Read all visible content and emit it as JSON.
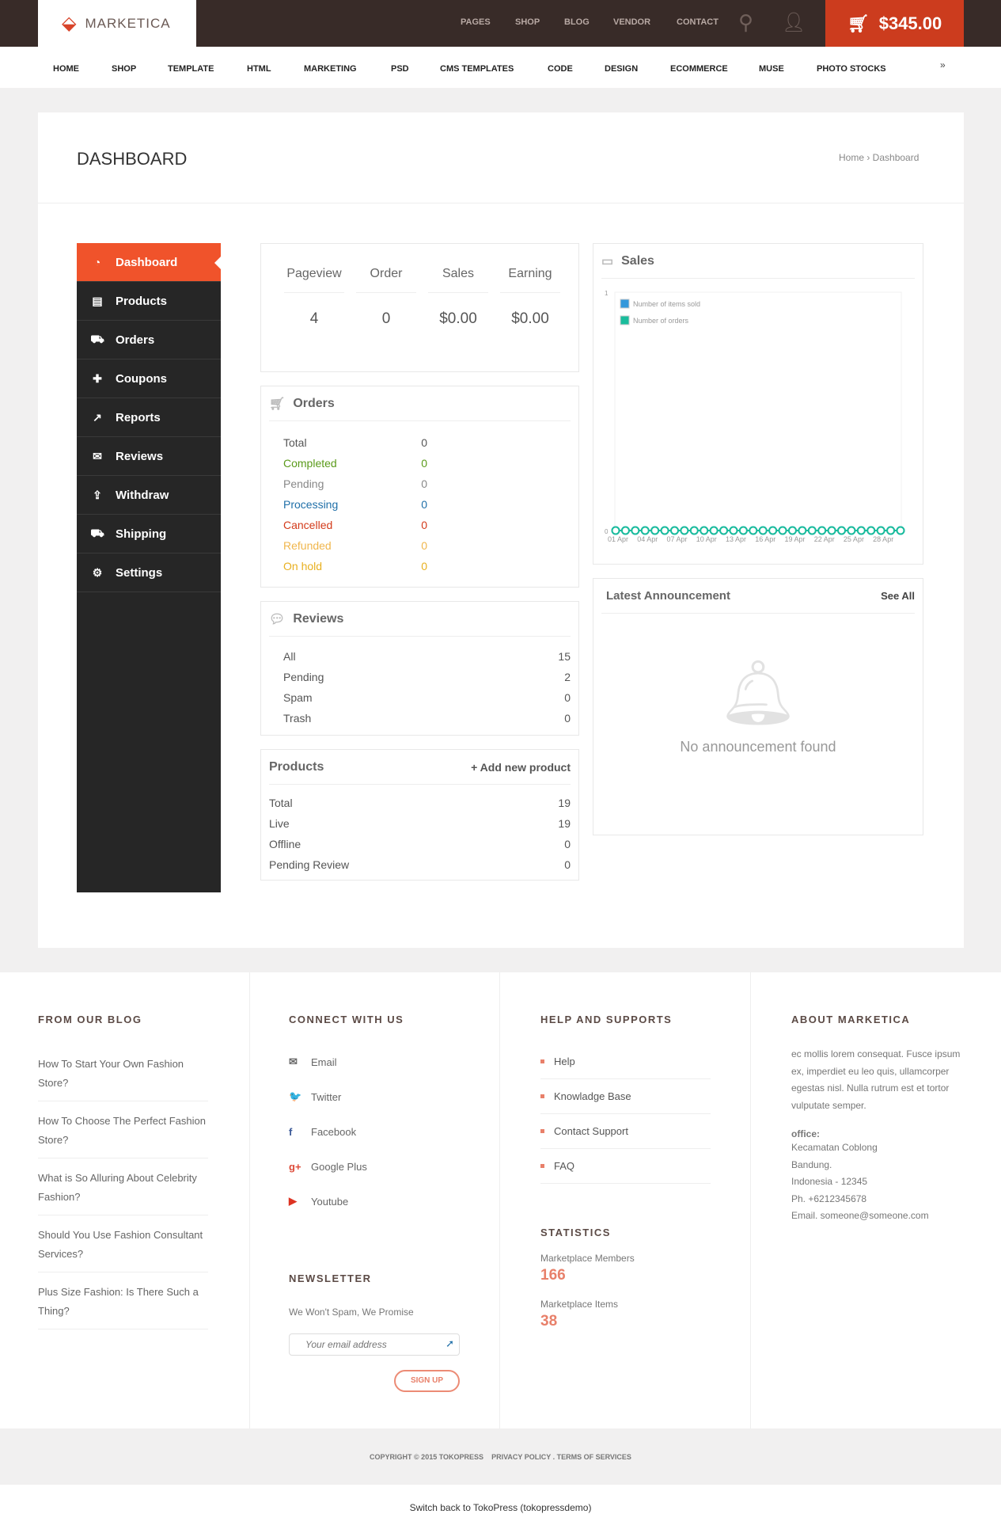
{
  "brand": {
    "name": "MARKETICA",
    "accent": "#f0532b"
  },
  "topnav": [
    "PAGES",
    "SHOP",
    "BLOG",
    "VENDOR",
    "CONTACT"
  ],
  "cart": {
    "total": "$345.00"
  },
  "menu": [
    "HOME",
    "SHOP",
    "TEMPLATE",
    "HTML",
    "MARKETING",
    "PSD",
    "CMS TEMPLATES",
    "CODE",
    "DESIGN",
    "ECOMMERCE",
    "MUSE",
    "PHOTO STOCKS"
  ],
  "page": {
    "title": "DASHBOARD",
    "breadcrumb": "Home › Dashboard"
  },
  "sidebar": [
    {
      "label": "Dashboard",
      "icon": "dashboard-icon",
      "glyph": "◔"
    },
    {
      "label": "Products",
      "icon": "briefcase-icon",
      "glyph": "▤"
    },
    {
      "label": "Orders",
      "icon": "cart-icon",
      "glyph": "⛟"
    },
    {
      "label": "Coupons",
      "icon": "gift-icon",
      "glyph": "✚"
    },
    {
      "label": "Reports",
      "icon": "chart-icon",
      "glyph": "↗"
    },
    {
      "label": "Reviews",
      "icon": "comments-icon",
      "glyph": "✉"
    },
    {
      "label": "Withdraw",
      "icon": "upload-icon",
      "glyph": "⇪"
    },
    {
      "label": "Shipping",
      "icon": "truck-icon",
      "glyph": "⛟"
    },
    {
      "label": "Settings",
      "icon": "gear-icon",
      "glyph": "⚙"
    }
  ],
  "stats": [
    {
      "label": "Pageview",
      "value": "4"
    },
    {
      "label": "Order",
      "value": "0"
    },
    {
      "label": "Sales",
      "value": "$0.00"
    },
    {
      "label": "Earning",
      "value": "$0.00"
    }
  ],
  "orders": {
    "title": "Orders",
    "rows": [
      {
        "label": "Total",
        "value": "0",
        "color": "#555555"
      },
      {
        "label": "Completed",
        "value": "0",
        "color": "#5a9a1a"
      },
      {
        "label": "Pending",
        "value": "0",
        "color": "#888888"
      },
      {
        "label": "Processing",
        "value": "0",
        "color": "#1f6fa8"
      },
      {
        "label": "Cancelled",
        "value": "0",
        "color": "#d33a1a"
      },
      {
        "label": "Refunded",
        "value": "0",
        "color": "#f0b64c"
      },
      {
        "label": "On hold",
        "value": "0",
        "color": "#e8b020"
      }
    ]
  },
  "reviews": {
    "title": "Reviews",
    "rows": [
      {
        "label": "All",
        "value": "15"
      },
      {
        "label": "Pending",
        "value": "2"
      },
      {
        "label": "Spam",
        "value": "0"
      },
      {
        "label": "Trash",
        "value": "0"
      }
    ]
  },
  "products": {
    "title": "Products",
    "add": "+ Add new product",
    "rows": [
      {
        "label": "Total",
        "value": "19"
      },
      {
        "label": "Live",
        "value": "19"
      },
      {
        "label": "Offline",
        "value": "0"
      },
      {
        "label": "Pending Review",
        "value": "0"
      }
    ]
  },
  "sales": {
    "title": "Sales"
  },
  "chart_data": {
    "type": "line",
    "x": [
      "01 Apr",
      "02 Apr",
      "03 Apr",
      "04 Apr",
      "05 Apr",
      "06 Apr",
      "07 Apr",
      "08 Apr",
      "09 Apr",
      "10 Apr",
      "11 Apr",
      "12 Apr",
      "13 Apr",
      "14 Apr",
      "15 Apr",
      "16 Apr",
      "17 Apr",
      "18 Apr",
      "19 Apr",
      "20 Apr",
      "21 Apr",
      "22 Apr",
      "23 Apr",
      "24 Apr",
      "25 Apr",
      "26 Apr",
      "27 Apr",
      "28 Apr",
      "29 Apr",
      "30 Apr"
    ],
    "xticks": [
      "01 Apr",
      "04 Apr",
      "07 Apr",
      "10 Apr",
      "13 Apr",
      "16 Apr",
      "19 Apr",
      "22 Apr",
      "25 Apr",
      "28 Apr"
    ],
    "yticks": [
      "0",
      "1"
    ],
    "ylim": [
      0,
      1
    ],
    "legend": "top-left",
    "series": [
      {
        "name": "Number of items sold",
        "color": "#3498db",
        "values": [
          0,
          0,
          0,
          0,
          0,
          0,
          0,
          0,
          0,
          0,
          0,
          0,
          0,
          0,
          0,
          0,
          0,
          0,
          0,
          0,
          0,
          0,
          0,
          0,
          0,
          0,
          0,
          0,
          0,
          0
        ]
      },
      {
        "name": "Number of orders",
        "color": "#1abc9c",
        "values": [
          0,
          0,
          0,
          0,
          0,
          0,
          0,
          0,
          0,
          0,
          0,
          0,
          0,
          0,
          0,
          0,
          0,
          0,
          0,
          0,
          0,
          0,
          0,
          0,
          0,
          0,
          0,
          0,
          0,
          0
        ]
      }
    ]
  },
  "announcement": {
    "title": "Latest Announcement",
    "see_all": "See All",
    "empty": "No announcement found"
  },
  "footer": {
    "blog": {
      "title": "FROM OUR BLOG",
      "items": [
        "How To Start Your Own Fashion Store?",
        "How To Choose The Perfect Fashion Store?",
        "What is So Alluring About Celebrity Fashion?",
        "Should You Use Fashion Consultant Services?",
        "Plus Size Fashion: Is There Such a Thing?"
      ]
    },
    "connect": {
      "title": "CONNECT WITH US",
      "items": [
        {
          "label": "Email",
          "icon": "email-icon",
          "glyph": "✉",
          "color": "#666"
        },
        {
          "label": "Twitter",
          "icon": "twitter-icon",
          "glyph": "🐦",
          "color": "#29a9e1"
        },
        {
          "label": "Facebook",
          "icon": "facebook-icon",
          "glyph": "f",
          "color": "#3b5998"
        },
        {
          "label": "Google Plus",
          "icon": "google-plus-icon",
          "glyph": "g+",
          "color": "#dd4b39"
        },
        {
          "label": "Youtube",
          "icon": "youtube-icon",
          "glyph": "▶",
          "color": "#d32"
        }
      ]
    },
    "newsletter": {
      "title": "NEWSLETTER",
      "text": "We Won't Spam, We Promise",
      "placeholder": "Your email address",
      "button": "SIGN UP"
    },
    "help": {
      "title": "HELP AND SUPPORTS",
      "items": [
        "Help",
        "Knowladge Base",
        "Contact Support",
        "FAQ"
      ]
    },
    "statistics": {
      "title": "STATISTICS",
      "items": [
        {
          "label": "Marketplace Members",
          "value": "166"
        },
        {
          "label": "Marketplace Items",
          "value": "38"
        }
      ]
    },
    "about": {
      "title": "ABOUT MARKETICA",
      "text": "ec mollis lorem consequat. Fusce ipsum ex, imperdiet eu leo quis, ullamcorper egestas nisl. Nulla rutrum est et tortor vulputate semper.",
      "office_label": "office:",
      "lines": [
        "Kecamatan Coblong",
        "Bandung.",
        "Indonesia - 12345",
        "Ph. +6212345678",
        "Email. someone@someone.com"
      ]
    },
    "copyright": "COPYRIGHT © 2015 TOKOPRESS",
    "privacy": "PRIVACY POLICY . TERMS OF SERVICES",
    "switch": "Switch back to TokoPress (tokopressdemo)"
  }
}
